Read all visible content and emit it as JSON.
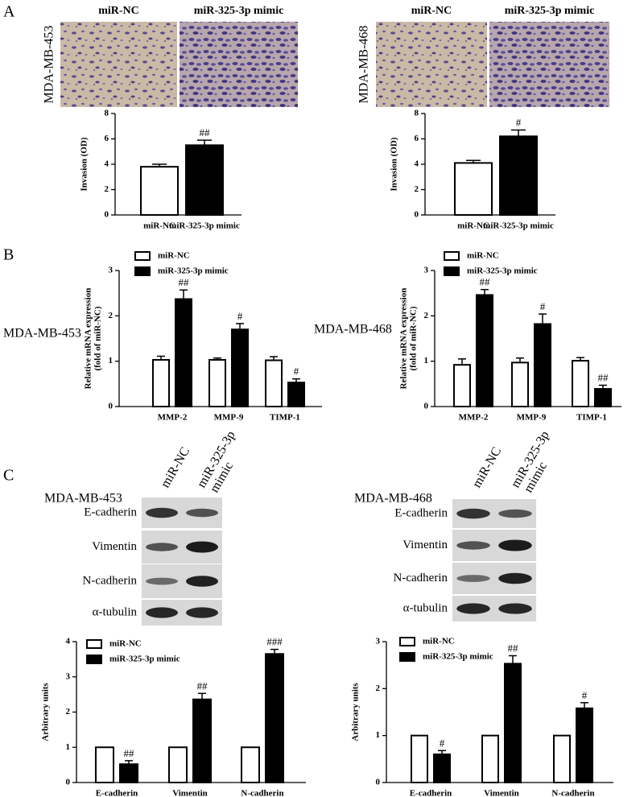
{
  "figure": {
    "panel_labels": [
      "A",
      "B",
      "C"
    ],
    "micrographs": [
      {
        "cell_line": "MDA-MB-453",
        "columns": [
          "miR-NC",
          "miR-325-3p mimic"
        ]
      },
      {
        "cell_line": "MDA-MB-468",
        "columns": [
          "miR-NC",
          "miR-325-3p mimic"
        ]
      }
    ],
    "mrna_row_labels": [
      "MDA-MB-453",
      "MDA-MB-468"
    ],
    "blots": [
      {
        "cell_line": "MDA-MB-453",
        "columns": [
          {
            "lines": [
              "miR-NC"
            ]
          },
          {
            "lines": [
              "miR-325-3p",
              "mimic"
            ]
          }
        ],
        "rows": [
          "E-cadherin",
          "Vimentin",
          "N-cadherin",
          "α-tubulin"
        ]
      },
      {
        "cell_line": "MDA-MB-468",
        "columns": [
          {
            "lines": [
              "miR-NC"
            ]
          },
          {
            "lines": [
              "miR-325-3p",
              "mimic"
            ]
          }
        ],
        "rows": [
          "E-cadherin",
          "Vimentin",
          "N-cadherin",
          "α-tubulin"
        ]
      }
    ]
  },
  "chart_data": [
    {
      "type": "bar",
      "y_label": "Invasion (OD)",
      "categories": [
        "miR-NC",
        "miR-325-3p mimic"
      ],
      "values": [
        3.8,
        5.5
      ],
      "errors": [
        0.2,
        0.4
      ],
      "colors": [
        "#ffffff",
        "#000000"
      ],
      "annotations": [
        {
          "index": 1,
          "text": "##"
        }
      ],
      "ylim": [
        0,
        8
      ],
      "yticks": [
        0,
        2,
        4,
        6,
        8
      ]
    },
    {
      "type": "bar",
      "y_label": "Invasion (OD)",
      "categories": [
        "miR-NC",
        "miR-325-3p mimic"
      ],
      "values": [
        4.1,
        6.2
      ],
      "errors": [
        0.2,
        0.5
      ],
      "colors": [
        "#ffffff",
        "#000000"
      ],
      "annotations": [
        {
          "index": 1,
          "text": "#"
        }
      ],
      "ylim": [
        0,
        8
      ],
      "yticks": [
        0,
        2,
        4,
        6,
        8
      ]
    },
    {
      "type": "bar",
      "y_label": [
        "Relative mRNA expression",
        "(fold of miR-NC)"
      ],
      "categories": [
        "MMP-2",
        "MMP-9",
        "TIMP-1"
      ],
      "series": [
        {
          "name": "miR-NC",
          "color": "#ffffff",
          "values": [
            1.03,
            1.03,
            1.02
          ],
          "errors": [
            0.08,
            0.04,
            0.08
          ]
        },
        {
          "name": "miR-325-3p mimic",
          "color": "#000000",
          "values": [
            2.37,
            1.7,
            0.53
          ],
          "errors": [
            0.2,
            0.13,
            0.08
          ]
        }
      ],
      "annotations": [
        {
          "series": 1,
          "index": 0,
          "text": "##"
        },
        {
          "series": 1,
          "index": 1,
          "text": "#"
        },
        {
          "series": 1,
          "index": 2,
          "text": "#"
        }
      ],
      "ylim": [
        0,
        3
      ],
      "yticks": [
        0,
        1,
        2,
        3
      ],
      "legend": "top-left"
    },
    {
      "type": "bar",
      "y_label": [
        "Relative mRNA expression",
        "(fold of miR-NC)"
      ],
      "categories": [
        "MMP-2",
        "MMP-9",
        "TIMP-1"
      ],
      "series": [
        {
          "name": "miR-NC",
          "color": "#ffffff",
          "values": [
            0.92,
            0.97,
            1.01
          ],
          "errors": [
            0.13,
            0.1,
            0.07
          ]
        },
        {
          "name": "miR-325-3p mimic",
          "color": "#000000",
          "values": [
            2.46,
            1.82,
            0.39
          ],
          "errors": [
            0.12,
            0.22,
            0.08
          ]
        }
      ],
      "annotations": [
        {
          "series": 1,
          "index": 0,
          "text": "##"
        },
        {
          "series": 1,
          "index": 1,
          "text": "#"
        },
        {
          "series": 1,
          "index": 2,
          "text": "##"
        }
      ],
      "ylim": [
        0,
        3
      ],
      "yticks": [
        0,
        1,
        2,
        3
      ],
      "legend": "top-left"
    },
    {
      "type": "bar",
      "y_label": "Arbitrary units",
      "categories": [
        "E-cadherin",
        "Vimentin",
        "N-cadherin"
      ],
      "series": [
        {
          "name": "miR-NC",
          "color": "#ffffff",
          "values": [
            1,
            1,
            1
          ]
        },
        {
          "name": "miR-325-3p mimic",
          "color": "#000000",
          "values": [
            0.52,
            2.36,
            3.65
          ],
          "errors": [
            0.1,
            0.17,
            0.13
          ]
        }
      ],
      "annotations": [
        {
          "series": 1,
          "index": 0,
          "text": "##"
        },
        {
          "series": 1,
          "index": 1,
          "text": "##"
        },
        {
          "series": 1,
          "index": 2,
          "text": "###"
        }
      ],
      "ylim": [
        0,
        4
      ],
      "yticks": [
        0,
        1,
        2,
        3,
        4
      ],
      "legend": "top-left"
    },
    {
      "type": "bar",
      "y_label": "Arbitrary units",
      "categories": [
        "E-cadherin",
        "Vimentin",
        "N-cadherin"
      ],
      "series": [
        {
          "name": "miR-NC",
          "color": "#ffffff",
          "values": [
            1,
            1,
            1
          ]
        },
        {
          "name": "miR-325-3p mimic",
          "color": "#000000",
          "values": [
            0.6,
            2.53,
            1.58
          ],
          "errors": [
            0.08,
            0.17,
            0.12
          ]
        }
      ],
      "annotations": [
        {
          "series": 1,
          "index": 0,
          "text": "#"
        },
        {
          "series": 1,
          "index": 1,
          "text": "##"
        },
        {
          "series": 1,
          "index": 2,
          "text": "#"
        }
      ],
      "ylim": [
        0,
        3
      ],
      "yticks": [
        0,
        1,
        2,
        3
      ],
      "legend": "top-left"
    }
  ]
}
